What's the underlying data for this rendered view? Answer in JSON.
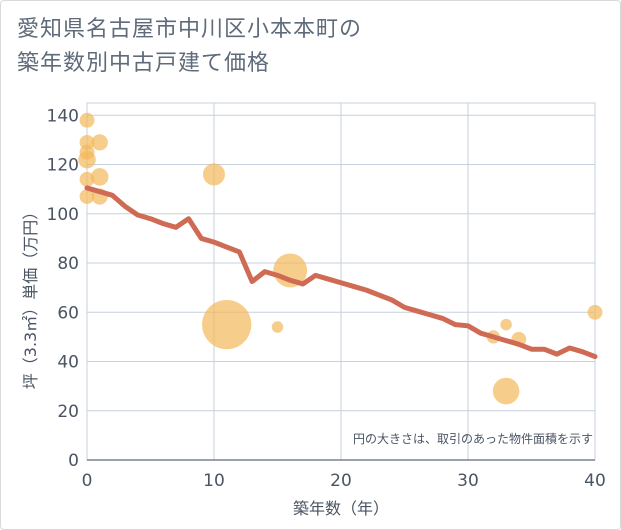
{
  "chart_data": {
    "type": "scatter",
    "title_line1": "愛知県名古屋市中川区小本本町の",
    "title_line2": "築年数別中古戸建て価格",
    "xlabel": "築年数（年）",
    "ylabel": "坪（3.3㎡）単価（万円）",
    "xlim": [
      0,
      40
    ],
    "ylim": [
      0,
      145
    ],
    "xticks": [
      "0",
      "10",
      "20",
      "30",
      "40"
    ],
    "xtick_values": [
      0,
      10,
      20,
      30,
      40
    ],
    "yticks": [
      "0",
      "20",
      "40",
      "60",
      "80",
      "100",
      "120",
      "140"
    ],
    "ytick_values": [
      0,
      20,
      40,
      60,
      80,
      100,
      120,
      140
    ],
    "note": "円の大きさは、取引のあった物件面積を示す",
    "colors": {
      "bubble": "#f3b85a",
      "line": "#cf6a55",
      "grid": "#c7d1de"
    },
    "bubbles": [
      {
        "x": 0,
        "y": 138,
        "size": 1
      },
      {
        "x": 0,
        "y": 129,
        "size": 1
      },
      {
        "x": 0,
        "y": 125,
        "size": 1
      },
      {
        "x": 0,
        "y": 122,
        "size": 1.4
      },
      {
        "x": 0,
        "y": 114,
        "size": 1
      },
      {
        "x": 0,
        "y": 107,
        "size": 1
      },
      {
        "x": 1,
        "y": 129,
        "size": 1.2
      },
      {
        "x": 1,
        "y": 115,
        "size": 1.4
      },
      {
        "x": 1,
        "y": 107,
        "size": 1.2
      },
      {
        "x": 10,
        "y": 116,
        "size": 2.2
      },
      {
        "x": 11,
        "y": 55,
        "size": 11
      },
      {
        "x": 15,
        "y": 54,
        "size": 0.6
      },
      {
        "x": 16,
        "y": 77,
        "size": 5.2
      },
      {
        "x": 32,
        "y": 50,
        "size": 0.8
      },
      {
        "x": 33,
        "y": 55,
        "size": 0.6
      },
      {
        "x": 33,
        "y": 28,
        "size": 3.2
      },
      {
        "x": 34,
        "y": 49,
        "size": 1
      },
      {
        "x": 40,
        "y": 60,
        "size": 1
      }
    ],
    "trend": {
      "x": [
        0,
        2,
        3,
        4,
        5,
        6,
        7,
        8,
        9,
        10,
        11,
        12,
        13,
        14,
        15,
        16,
        17,
        18,
        19,
        20,
        21,
        22,
        23,
        24,
        25,
        26,
        27,
        28,
        29,
        30,
        31,
        32,
        33,
        34,
        35,
        36,
        37,
        38,
        39,
        40
      ],
      "y": [
        110.5,
        107.5,
        103,
        99.5,
        98,
        96,
        94.5,
        98,
        90,
        88.5,
        86.5,
        84.5,
        72.5,
        76.5,
        75,
        73,
        71.5,
        75,
        73.5,
        72,
        70.5,
        69,
        67,
        65,
        62,
        60.5,
        59,
        57.5,
        55,
        54.5,
        51.5,
        50,
        48.5,
        47,
        45,
        45,
        43,
        45.5,
        44,
        42
      ]
    }
  }
}
